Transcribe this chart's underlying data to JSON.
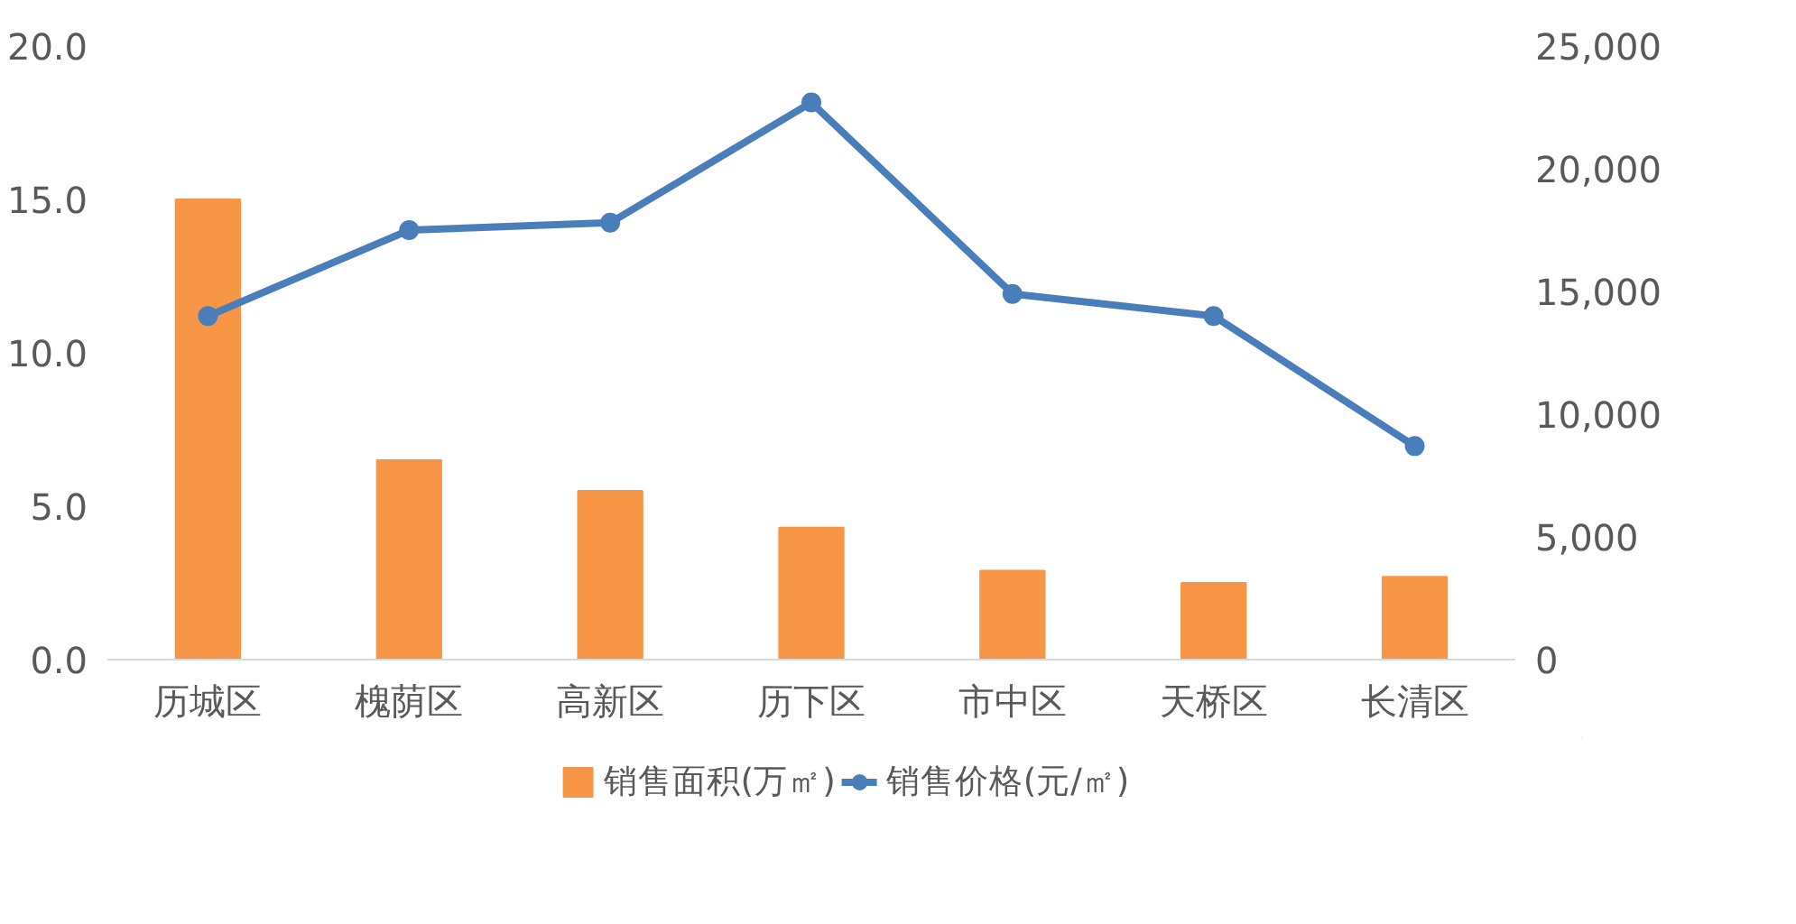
{
  "chart_data": {
    "type": "bar",
    "categories": [
      "历城区",
      "槐荫区",
      "高新区",
      "历下区",
      "市中区",
      "天桥区",
      "长清区"
    ],
    "series": [
      {
        "name": "销售面积(万㎡)",
        "color": "#f79646",
        "values": [
          15.0,
          6.5,
          5.5,
          4.3,
          2.9,
          2.5,
          2.7
        ]
      },
      {
        "name": "销售价格(元/㎡)",
        "type": "line",
        "axis": "y2",
        "color": "#4a7ebb",
        "marker": "circle",
        "values": [
          14000,
          17500,
          17800,
          22700,
          14900,
          14000,
          8700
        ]
      }
    ],
    "ylim": [
      0,
      20
    ],
    "yticks": [
      {
        "value": 0,
        "label": "0.0"
      },
      {
        "value": 5,
        "label": "5.0"
      },
      {
        "value": 10,
        "label": "10.0"
      },
      {
        "value": 15,
        "label": "15.0"
      },
      {
        "value": 20,
        "label": "20.0"
      }
    ],
    "y2lim": [
      0,
      25000
    ],
    "y2ticks": [
      0,
      {
        "value": 5000,
        "label": "5,000"
      },
      {
        "value": 10000,
        "label": "10,000"
      },
      {
        "value": 15000,
        "label": "15,000"
      },
      {
        "value": 20000,
        "label": "20,000"
      },
      {
        "value": 25000,
        "label": "25,000"
      }
    ],
    "grid": false,
    "legend": "bottom"
  }
}
